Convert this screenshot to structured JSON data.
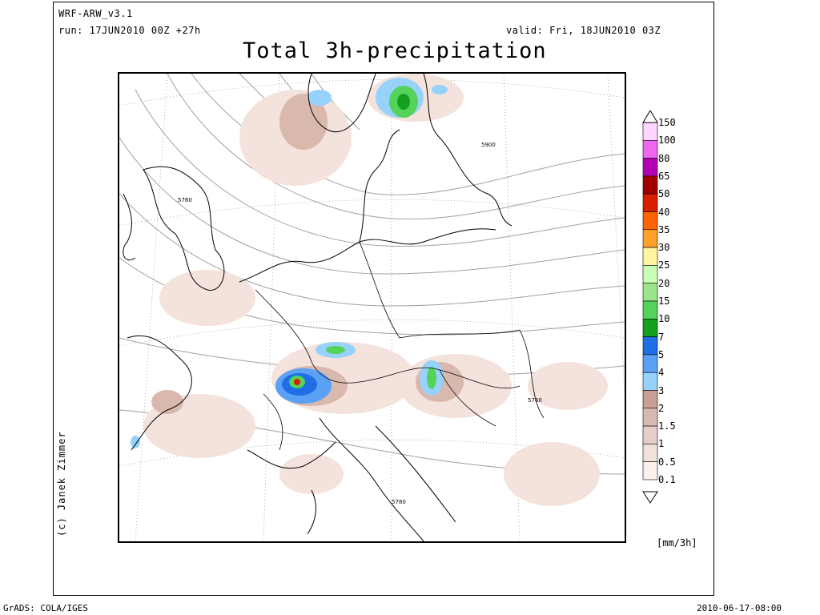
{
  "header": {
    "model": "WRF-ARW_v3.1",
    "run": "run: 17JUN2010 00Z +27h",
    "valid": "valid: Fri, 18JUN2010 03Z"
  },
  "title": "Total 3h-precipitation",
  "credit": "(c) Janek Zimmer",
  "colorbar": {
    "units": "[mm/3h]",
    "levels": [
      "150",
      "100",
      "80",
      "65",
      "50",
      "40",
      "35",
      "30",
      "25",
      "20",
      "15",
      "10",
      "7",
      "5",
      "4",
      "3",
      "2",
      "1.5",
      "1",
      "0.5",
      "0.1"
    ],
    "colors": [
      "#ffd6ff",
      "#f066f0",
      "#b400b4",
      "#a00000",
      "#dc1e00",
      "#ff6400",
      "#ffa028",
      "#fff5a0",
      "#c8ffb4",
      "#9be68c",
      "#55d25a",
      "#14a01e",
      "#1e6ee6",
      "#5aa0f5",
      "#96d2fa",
      "#c8a098",
      "#d7b9af",
      "#e6cdc8",
      "#f0e1dc",
      "#fbf0eb"
    ]
  },
  "contours": {
    "labels": [
      "5760",
      "5900",
      "5760",
      "5780"
    ]
  },
  "footer": {
    "left": "GrADS: COLA/IGES",
    "right": "2010-06-17-08:00"
  }
}
